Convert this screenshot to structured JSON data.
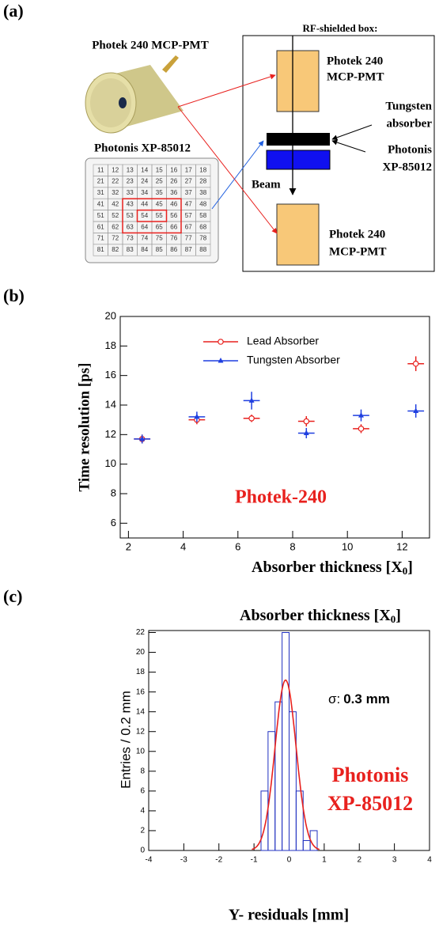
{
  "panel_labels": [
    "(a)",
    "(b)",
    "(c)"
  ],
  "diagram": {
    "pmt_label": "Photek 240 MCP-PMT",
    "mcp_label": "Photonis XP-85012",
    "pixel_grid": [
      [
        "11",
        "12",
        "13",
        "14",
        "15",
        "16",
        "17",
        "18"
      ],
      [
        "21",
        "22",
        "23",
        "24",
        "25",
        "26",
        "27",
        "28"
      ],
      [
        "31",
        "32",
        "33",
        "34",
        "35",
        "36",
        "37",
        "38"
      ],
      [
        "41",
        "42",
        "43",
        "44",
        "45",
        "46",
        "47",
        "48"
      ],
      [
        "51",
        "52",
        "53",
        "54",
        "55",
        "56",
        "57",
        "58"
      ],
      [
        "61",
        "62",
        "63",
        "64",
        "65",
        "66",
        "67",
        "68"
      ],
      [
        "71",
        "72",
        "73",
        "74",
        "75",
        "76",
        "77",
        "78"
      ],
      [
        "81",
        "82",
        "83",
        "84",
        "85",
        "86",
        "87",
        "88"
      ]
    ],
    "box_title": "RF-shielded box:",
    "top_pmt": [
      "Photek 240",
      "MCP-PMT"
    ],
    "absorber": [
      "Tungsten",
      "absorber"
    ],
    "photonis": [
      "Photonis",
      "XP-85012"
    ],
    "beam": "Beam",
    "bottom_pmt": [
      "Photek 240",
      "MCP-PMT"
    ]
  },
  "chart_data": [
    {
      "type": "scatter",
      "xlabel": [
        "Absorber thickness [X",
        "0",
        "]"
      ],
      "ylabel": "Time resolution [ps]",
      "xlim": [
        1.7,
        13
      ],
      "ylim": [
        5,
        20
      ],
      "xticks": [
        2,
        4,
        6,
        8,
        10,
        12
      ],
      "yticks": [
        6,
        8,
        10,
        12,
        14,
        16,
        18,
        20
      ],
      "legend": "top-left",
      "annotation": "Photek-240",
      "series": [
        {
          "name": "Lead Absorber",
          "color": "#e8211e",
          "marker": "open-circle",
          "x": [
            2.5,
            4.5,
            6.5,
            8.5,
            10.5,
            12.5
          ],
          "values": [
            11.7,
            13.0,
            13.1,
            12.9,
            12.4,
            16.8
          ],
          "xerr": [
            0.3,
            0.3,
            0.3,
            0.3,
            0.3,
            0.3
          ],
          "yerr": [
            0.3,
            0.3,
            0.25,
            0.35,
            0.3,
            0.5
          ]
        },
        {
          "name": "Tungsten Absorber",
          "color": "#1f3fe0",
          "marker": "triangle",
          "x": [
            2.5,
            4.5,
            6.5,
            8.5,
            10.5,
            12.5
          ],
          "values": [
            11.7,
            13.2,
            14.3,
            12.1,
            13.3,
            13.6
          ],
          "xerr": [
            0.3,
            0.3,
            0.3,
            0.3,
            0.3,
            0.3
          ],
          "yerr": [
            0.3,
            0.35,
            0.6,
            0.35,
            0.4,
            0.45
          ]
        }
      ]
    },
    {
      "type": "histogram",
      "title": [
        "Absorber thickness [X",
        "0",
        "]"
      ],
      "xlabel": "Y- residuals [mm]",
      "ylabel": "Entries / 0.2 mm",
      "xlim": [
        -4,
        4
      ],
      "ylim": [
        0,
        22.2
      ],
      "xticks": [
        -4,
        -3,
        -2,
        -1,
        0,
        1,
        2,
        3,
        4
      ],
      "yticks": [
        0,
        2,
        4,
        6,
        8,
        10,
        12,
        14,
        16,
        18,
        20,
        22
      ],
      "bins": [
        -1.0,
        -0.8,
        -0.6,
        -0.4,
        -0.2,
        0.0,
        0.2,
        0.4,
        0.6,
        0.8
      ],
      "values": [
        0,
        6,
        12,
        15,
        22,
        14,
        6,
        1,
        2
      ],
      "color": "#2030c0",
      "fit": {
        "mean": -0.1,
        "sigma": 0.3,
        "amplitude": 17.2,
        "color": "#e8211e"
      },
      "sigma_label": [
        "σ:",
        "0.3 mm"
      ],
      "annotation": [
        "Photonis",
        "XP-85012"
      ]
    }
  ]
}
